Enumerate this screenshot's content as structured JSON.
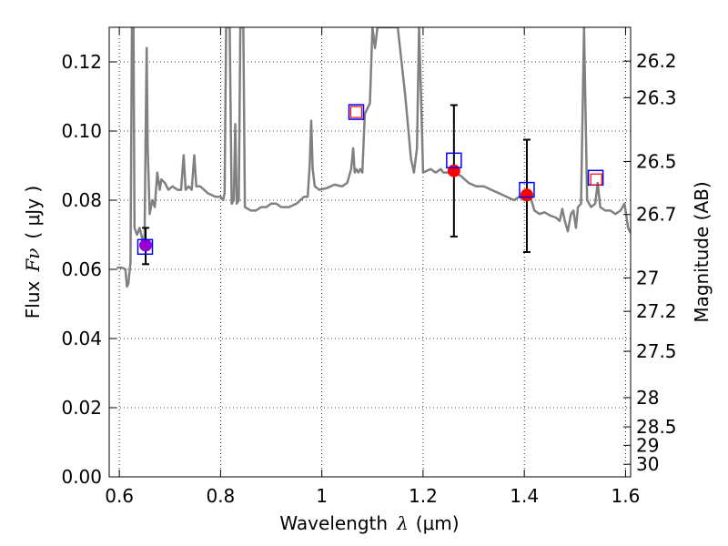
{
  "chart_data": {
    "type": "scatter",
    "xlabel_main": "Wavelength",
    "xlabel_math": "λ",
    "xlabel_unit": "(μm)",
    "ylabel_main": "Flux",
    "ylabel_math": "Fν",
    "ylabel_unit": "( μJy )",
    "y2label": "Magnitude (AB)",
    "xlim": [
      0.58,
      1.61
    ],
    "ylim": [
      0.0,
      0.13
    ],
    "x_ticks": [
      0.6,
      0.8,
      1.0,
      1.2,
      1.4,
      1.6
    ],
    "x_tick_labels": [
      "0.6",
      "0.8",
      "1",
      "1.2",
      "1.4",
      "1.6"
    ],
    "y_ticks": [
      0.0,
      0.02,
      0.04,
      0.06,
      0.08,
      0.1,
      0.12
    ],
    "y_tick_labels": [
      "0.00",
      "0.02",
      "0.04",
      "0.06",
      "0.08",
      "0.10",
      "0.12"
    ],
    "mag_ticks": [
      26.2,
      26.3,
      26.5,
      26.7,
      27,
      27.2,
      27.5,
      28,
      28.5,
      29,
      30
    ],
    "mag_tick_labels": [
      "26.2",
      "26.3",
      "26.5",
      "26.7",
      "27",
      "27.2",
      "27.5",
      "28",
      "28.5",
      "29",
      "30"
    ],
    "grid": true,
    "grid_style": "dotted",
    "series": [
      {
        "kind": "spectrum_line",
        "color": "#808080",
        "points": [
          [
            0.595,
            0.0605
          ],
          [
            0.605,
            0.0605
          ],
          [
            0.612,
            0.06
          ],
          [
            0.615,
            0.055
          ],
          [
            0.618,
            0.056
          ],
          [
            0.622,
            0.062
          ],
          [
            0.625,
            0.13
          ],
          [
            0.628,
            0.13
          ],
          [
            0.63,
            0.072
          ],
          [
            0.635,
            0.07
          ],
          [
            0.64,
            0.072
          ],
          [
            0.645,
            0.069
          ],
          [
            0.648,
            0.068
          ],
          [
            0.65,
            0.07
          ],
          [
            0.652,
            0.1
          ],
          [
            0.654,
            0.124
          ],
          [
            0.656,
            0.095
          ],
          [
            0.66,
            0.076
          ],
          [
            0.665,
            0.08
          ],
          [
            0.67,
            0.078
          ],
          [
            0.675,
            0.088
          ],
          [
            0.68,
            0.083
          ],
          [
            0.683,
            0.086
          ],
          [
            0.69,
            0.085
          ],
          [
            0.697,
            0.083
          ],
          [
            0.705,
            0.084
          ],
          [
            0.715,
            0.083
          ],
          [
            0.722,
            0.083
          ],
          [
            0.727,
            0.093
          ],
          [
            0.731,
            0.083
          ],
          [
            0.737,
            0.084
          ],
          [
            0.743,
            0.083
          ],
          [
            0.748,
            0.093
          ],
          [
            0.752,
            0.084
          ],
          [
            0.76,
            0.084
          ],
          [
            0.775,
            0.082
          ],
          [
            0.79,
            0.081
          ],
          [
            0.8,
            0.081
          ],
          [
            0.805,
            0.08
          ],
          [
            0.808,
            0.082
          ],
          [
            0.811,
            0.13
          ],
          [
            0.818,
            0.13
          ],
          [
            0.822,
            0.079
          ],
          [
            0.826,
            0.08
          ],
          [
            0.829,
            0.102
          ],
          [
            0.832,
            0.079
          ],
          [
            0.836,
            0.08
          ],
          [
            0.839,
            0.13
          ],
          [
            0.845,
            0.13
          ],
          [
            0.848,
            0.078
          ],
          [
            0.86,
            0.077
          ],
          [
            0.87,
            0.077
          ],
          [
            0.88,
            0.078
          ],
          [
            0.89,
            0.078
          ],
          [
            0.9,
            0.079
          ],
          [
            0.91,
            0.079
          ],
          [
            0.92,
            0.078
          ],
          [
            0.935,
            0.078
          ],
          [
            0.95,
            0.079
          ],
          [
            0.965,
            0.081
          ],
          [
            0.972,
            0.081
          ],
          [
            0.976,
            0.09
          ],
          [
            0.979,
            0.103
          ],
          [
            0.982,
            0.089
          ],
          [
            0.986,
            0.084
          ],
          [
            0.995,
            0.083
          ],
          [
            1.01,
            0.0835
          ],
          [
            1.025,
            0.0845
          ],
          [
            1.04,
            0.084
          ],
          [
            1.05,
            0.085
          ],
          [
            1.058,
            0.089
          ],
          [
            1.062,
            0.095
          ],
          [
            1.065,
            0.088
          ],
          [
            1.068,
            0.089
          ],
          [
            1.072,
            0.088
          ],
          [
            1.076,
            0.089
          ],
          [
            1.08,
            0.088
          ],
          [
            1.085,
            0.105
          ],
          [
            1.095,
            0.108
          ],
          [
            1.1,
            0.13
          ],
          [
            1.105,
            0.124
          ],
          [
            1.11,
            0.13
          ],
          [
            1.15,
            0.13
          ],
          [
            1.165,
            0.11
          ],
          [
            1.17,
            0.102
          ],
          [
            1.176,
            0.092
          ],
          [
            1.182,
            0.088
          ],
          [
            1.188,
            0.095
          ],
          [
            1.192,
            0.13
          ],
          [
            1.196,
            0.11
          ],
          [
            1.2,
            0.088
          ],
          [
            1.215,
            0.089
          ],
          [
            1.225,
            0.088
          ],
          [
            1.235,
            0.089
          ],
          [
            1.24,
            0.088
          ],
          [
            1.25,
            0.088
          ],
          [
            1.26,
            0.088
          ],
          [
            1.275,
            0.087
          ],
          [
            1.29,
            0.085
          ],
          [
            1.305,
            0.084
          ],
          [
            1.32,
            0.084
          ],
          [
            1.335,
            0.083
          ],
          [
            1.35,
            0.082
          ],
          [
            1.365,
            0.081
          ],
          [
            1.38,
            0.08
          ],
          [
            1.39,
            0.081
          ],
          [
            1.4,
            0.08
          ],
          [
            1.41,
            0.082
          ],
          [
            1.42,
            0.077
          ],
          [
            1.43,
            0.076
          ],
          [
            1.44,
            0.0765
          ],
          [
            1.452,
            0.0755
          ],
          [
            1.462,
            0.075
          ],
          [
            1.47,
            0.074
          ],
          [
            1.475,
            0.0775
          ],
          [
            1.48,
            0.074
          ],
          [
            1.486,
            0.071
          ],
          [
            1.492,
            0.076
          ],
          [
            1.497,
            0.077
          ],
          [
            1.502,
            0.072
          ],
          [
            1.506,
            0.078
          ],
          [
            1.512,
            0.079
          ],
          [
            1.518,
            0.13
          ],
          [
            1.524,
            0.08
          ],
          [
            1.532,
            0.078
          ],
          [
            1.54,
            0.079
          ],
          [
            1.545,
            0.085
          ],
          [
            1.55,
            0.078
          ],
          [
            1.56,
            0.077
          ],
          [
            1.57,
            0.077
          ],
          [
            1.58,
            0.076
          ],
          [
            1.59,
            0.077
          ],
          [
            1.598,
            0.079
          ],
          [
            1.605,
            0.072
          ],
          [
            1.61,
            0.0705
          ]
        ]
      },
      {
        "kind": "observed_points",
        "color": "#ff0000",
        "points": [
          {
            "x": 0.652,
            "y": 0.067,
            "yerr_low": 0.0615,
            "yerr_high": 0.072,
            "color": "#9400d3"
          },
          {
            "x": 1.261,
            "y": 0.0885,
            "yerr_low": 0.0695,
            "yerr_high": 0.1075
          },
          {
            "x": 1.405,
            "y": 0.0815,
            "yerr_low": 0.065,
            "yerr_high": 0.0975
          }
        ]
      },
      {
        "kind": "model_squares",
        "color": "#0000ff",
        "points": [
          {
            "x": 0.651,
            "y": 0.0665
          },
          {
            "x": 1.068,
            "y": 0.1055
          },
          {
            "x": 1.261,
            "y": 0.0915
          },
          {
            "x": 1.405,
            "y": 0.083
          },
          {
            "x": 1.541,
            "y": 0.0865
          }
        ]
      },
      {
        "kind": "synthetic_squares",
        "color": "#ff0000",
        "points": [
          {
            "x": 1.068,
            "y": 0.1055
          },
          {
            "x": 1.542,
            "y": 0.086
          }
        ]
      }
    ]
  }
}
